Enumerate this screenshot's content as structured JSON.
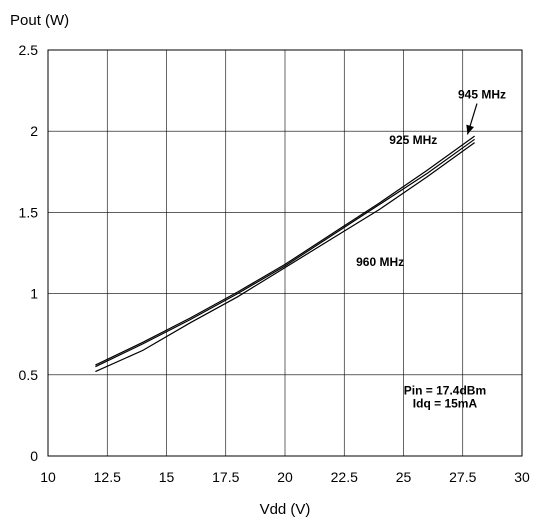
{
  "chart_data": {
    "type": "line",
    "title": "",
    "xlabel": "Vdd (V)",
    "ylabel": "Pout (W)",
    "xlim": [
      10,
      30
    ],
    "ylim": [
      0,
      2.5
    ],
    "x_ticks": [
      10,
      12.5,
      15,
      17.5,
      20,
      22.5,
      25,
      27.5,
      30
    ],
    "y_ticks": [
      0,
      0.5,
      1,
      1.5,
      2,
      2.5
    ],
    "x_tick_labels": [
      "10",
      "12.5",
      "15",
      "17.5",
      "20",
      "22.5",
      "25",
      "27.5",
      "30"
    ],
    "y_tick_labels": [
      "0",
      "0.5",
      "1",
      "1.5",
      "2",
      "2.5"
    ],
    "grid": true,
    "series": [
      {
        "name": "925 MHz",
        "x": [
          12,
          14,
          16,
          18,
          20,
          22,
          24,
          26,
          28
        ],
        "y": [
          0.56,
          0.7,
          0.85,
          1.01,
          1.18,
          1.37,
          1.56,
          1.76,
          1.97
        ]
      },
      {
        "name": "945 MHz",
        "x": [
          12,
          14,
          16,
          18,
          20,
          22,
          24,
          26,
          28
        ],
        "y": [
          0.55,
          0.69,
          0.84,
          1.0,
          1.17,
          1.36,
          1.55,
          1.74,
          1.95
        ]
      },
      {
        "name": "960 MHz",
        "x": [
          12,
          14,
          16,
          18,
          20,
          22,
          24,
          26,
          28
        ],
        "y": [
          0.52,
          0.65,
          0.82,
          0.98,
          1.16,
          1.34,
          1.52,
          1.72,
          1.93
        ]
      }
    ],
    "annotations": [
      {
        "text": "945 MHz",
        "arrow": true
      },
      {
        "text": "925 MHz"
      },
      {
        "text": "960 MHz"
      },
      {
        "text": "Pin = 17.4dBm"
      },
      {
        "text": "Idq = 15mA"
      }
    ]
  }
}
